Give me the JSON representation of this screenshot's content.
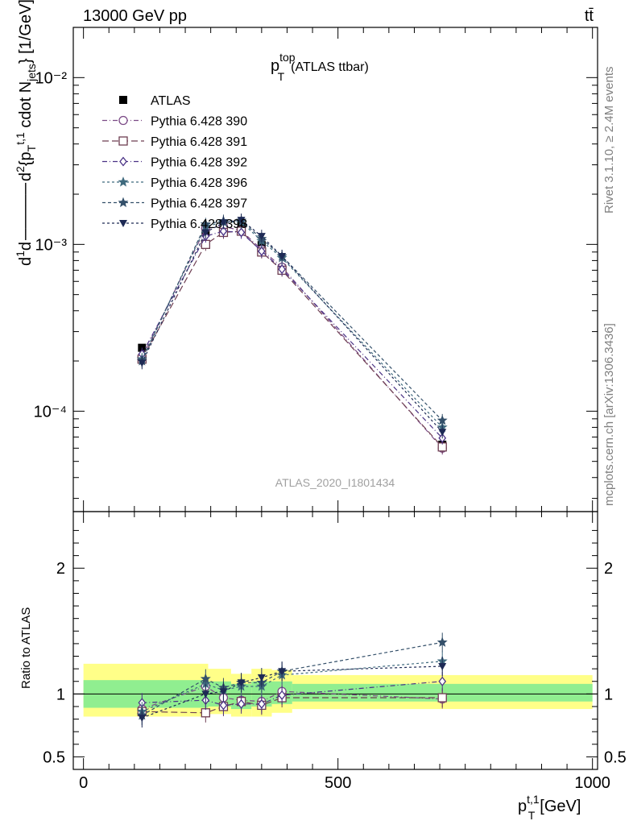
{
  "header": {
    "left_label": "13000 GeV pp",
    "right_label": "tt̄"
  },
  "plot_title": {
    "main": "p",
    "sup": "top",
    "sub": "T",
    "suffix": "(ATLAS ttbar)"
  },
  "side_labels": {
    "rivet": "Rivet 3.1.10, ≥ 2.4M events",
    "mcplots": "mcplots.cern.ch [arXiv:1306.3436]"
  },
  "analysis_tag": "ATLAS_2020_I1801434",
  "colors": {
    "ATLAS": "#000000",
    "s390": "#7b4a86",
    "s391": "#6e3e52",
    "s392": "#4a3285",
    "s396": "#3f6a7e",
    "s397": "#34506a",
    "s398": "#1e2a55",
    "band_inner": "#90ee90",
    "band_outer": "#ffff88"
  },
  "chart_data": [
    {
      "type": "scatter",
      "panel": "main",
      "ylabel": "d²σ / d²{p_T^{t,1} cdot N_jets} [1/GeV]",
      "yscale": "log",
      "ylim": [
        2.5e-05,
        0.02
      ],
      "xlim": [
        -20,
        1010
      ],
      "ytick_labels": [
        "10⁻⁴",
        "10⁻³",
        "10⁻²"
      ],
      "x": [
        115,
        240,
        275,
        310,
        350,
        390,
        705
      ],
      "series": [
        {
          "name": "ATLAS",
          "values": [
            0.00024,
            0.00118,
            0.00132,
            0.00128,
            0.00099,
            0.00072,
            6.3e-05
          ]
        },
        {
          "name": "Pythia 6.428 390",
          "values": [
            0.00021,
            0.00125,
            0.00128,
            0.00121,
            0.00093,
            0.00073,
            6e-05
          ]
        },
        {
          "name": "Pythia 6.428 391",
          "values": [
            0.000205,
            0.001,
            0.00118,
            0.0012,
            0.0009,
            0.0007,
            6.1e-05
          ]
        },
        {
          "name": "Pythia 6.428 392",
          "values": [
            0.00022,
            0.00112,
            0.0012,
            0.00118,
            0.00091,
            0.00071,
            6.9e-05
          ]
        },
        {
          "name": "Pythia 6.428 396",
          "values": [
            0.000205,
            0.00128,
            0.00136,
            0.00136,
            0.00105,
            0.00083,
            8e-05
          ]
        },
        {
          "name": "Pythia 6.428 397",
          "values": [
            0.0002,
            0.00132,
            0.00138,
            0.00139,
            0.00108,
            0.00085,
            8.8e-05
          ]
        },
        {
          "name": "Pythia 6.428 398",
          "values": [
            0.000195,
            0.00118,
            0.00135,
            0.0014,
            0.00112,
            0.00085,
            7.5e-05
          ]
        }
      ]
    },
    {
      "type": "scatter",
      "panel": "ratio",
      "xlabel": "p_T^{t,1} [GeV]",
      "ylabel": "Ratio to ATLAS",
      "ylim": [
        0.4,
        2.45
      ],
      "xlim": [
        -20,
        1010
      ],
      "xtick_labels": [
        "0",
        "500",
        "1000"
      ],
      "ytick_labels": [
        "0.5",
        "1",
        "2"
      ],
      "x": [
        115,
        240,
        275,
        310,
        350,
        390,
        705
      ],
      "series": [
        {
          "name": "Pythia 6.428 390",
          "values": [
            0.88,
            1.06,
            0.97,
            0.95,
            0.94,
            1.02,
            0.96
          ]
        },
        {
          "name": "Pythia 6.428 391",
          "values": [
            0.86,
            0.85,
            0.9,
            0.94,
            0.91,
            0.97,
            0.97
          ]
        },
        {
          "name": "Pythia 6.428 392",
          "values": [
            0.93,
            0.95,
            0.91,
            0.92,
            0.92,
            0.99,
            1.1
          ]
        },
        {
          "name": "Pythia 6.428 396",
          "values": [
            0.86,
            1.08,
            1.03,
            1.06,
            1.06,
            1.15,
            1.26
          ]
        },
        {
          "name": "Pythia 6.428 397",
          "values": [
            0.83,
            1.12,
            1.05,
            1.09,
            1.09,
            1.18,
            1.41
          ]
        },
        {
          "name": "Pythia 6.428 398",
          "values": [
            0.81,
            1.0,
            1.02,
            1.09,
            1.13,
            1.18,
            1.22
          ]
        }
      ],
      "bands": [
        {
          "x0": 0,
          "x1": 245,
          "inner": [
            0.89,
            1.11
          ],
          "outer": [
            0.82,
            1.24
          ]
        },
        {
          "x0": 245,
          "x1": 290,
          "inner": [
            0.9,
            1.1
          ],
          "outer": [
            0.84,
            1.2
          ]
        },
        {
          "x0": 290,
          "x1": 330,
          "inner": [
            0.88,
            1.08
          ],
          "outer": [
            0.82,
            1.16
          ]
        },
        {
          "x0": 330,
          "x1": 370,
          "inner": [
            0.9,
            1.1
          ],
          "outer": [
            0.82,
            1.2
          ]
        },
        {
          "x0": 370,
          "x1": 410,
          "inner": [
            0.92,
            1.1
          ],
          "outer": [
            0.85,
            1.19
          ]
        },
        {
          "x0": 410,
          "x1": 1000,
          "inner": [
            0.94,
            1.08
          ],
          "outer": [
            0.88,
            1.15
          ]
        }
      ]
    }
  ]
}
